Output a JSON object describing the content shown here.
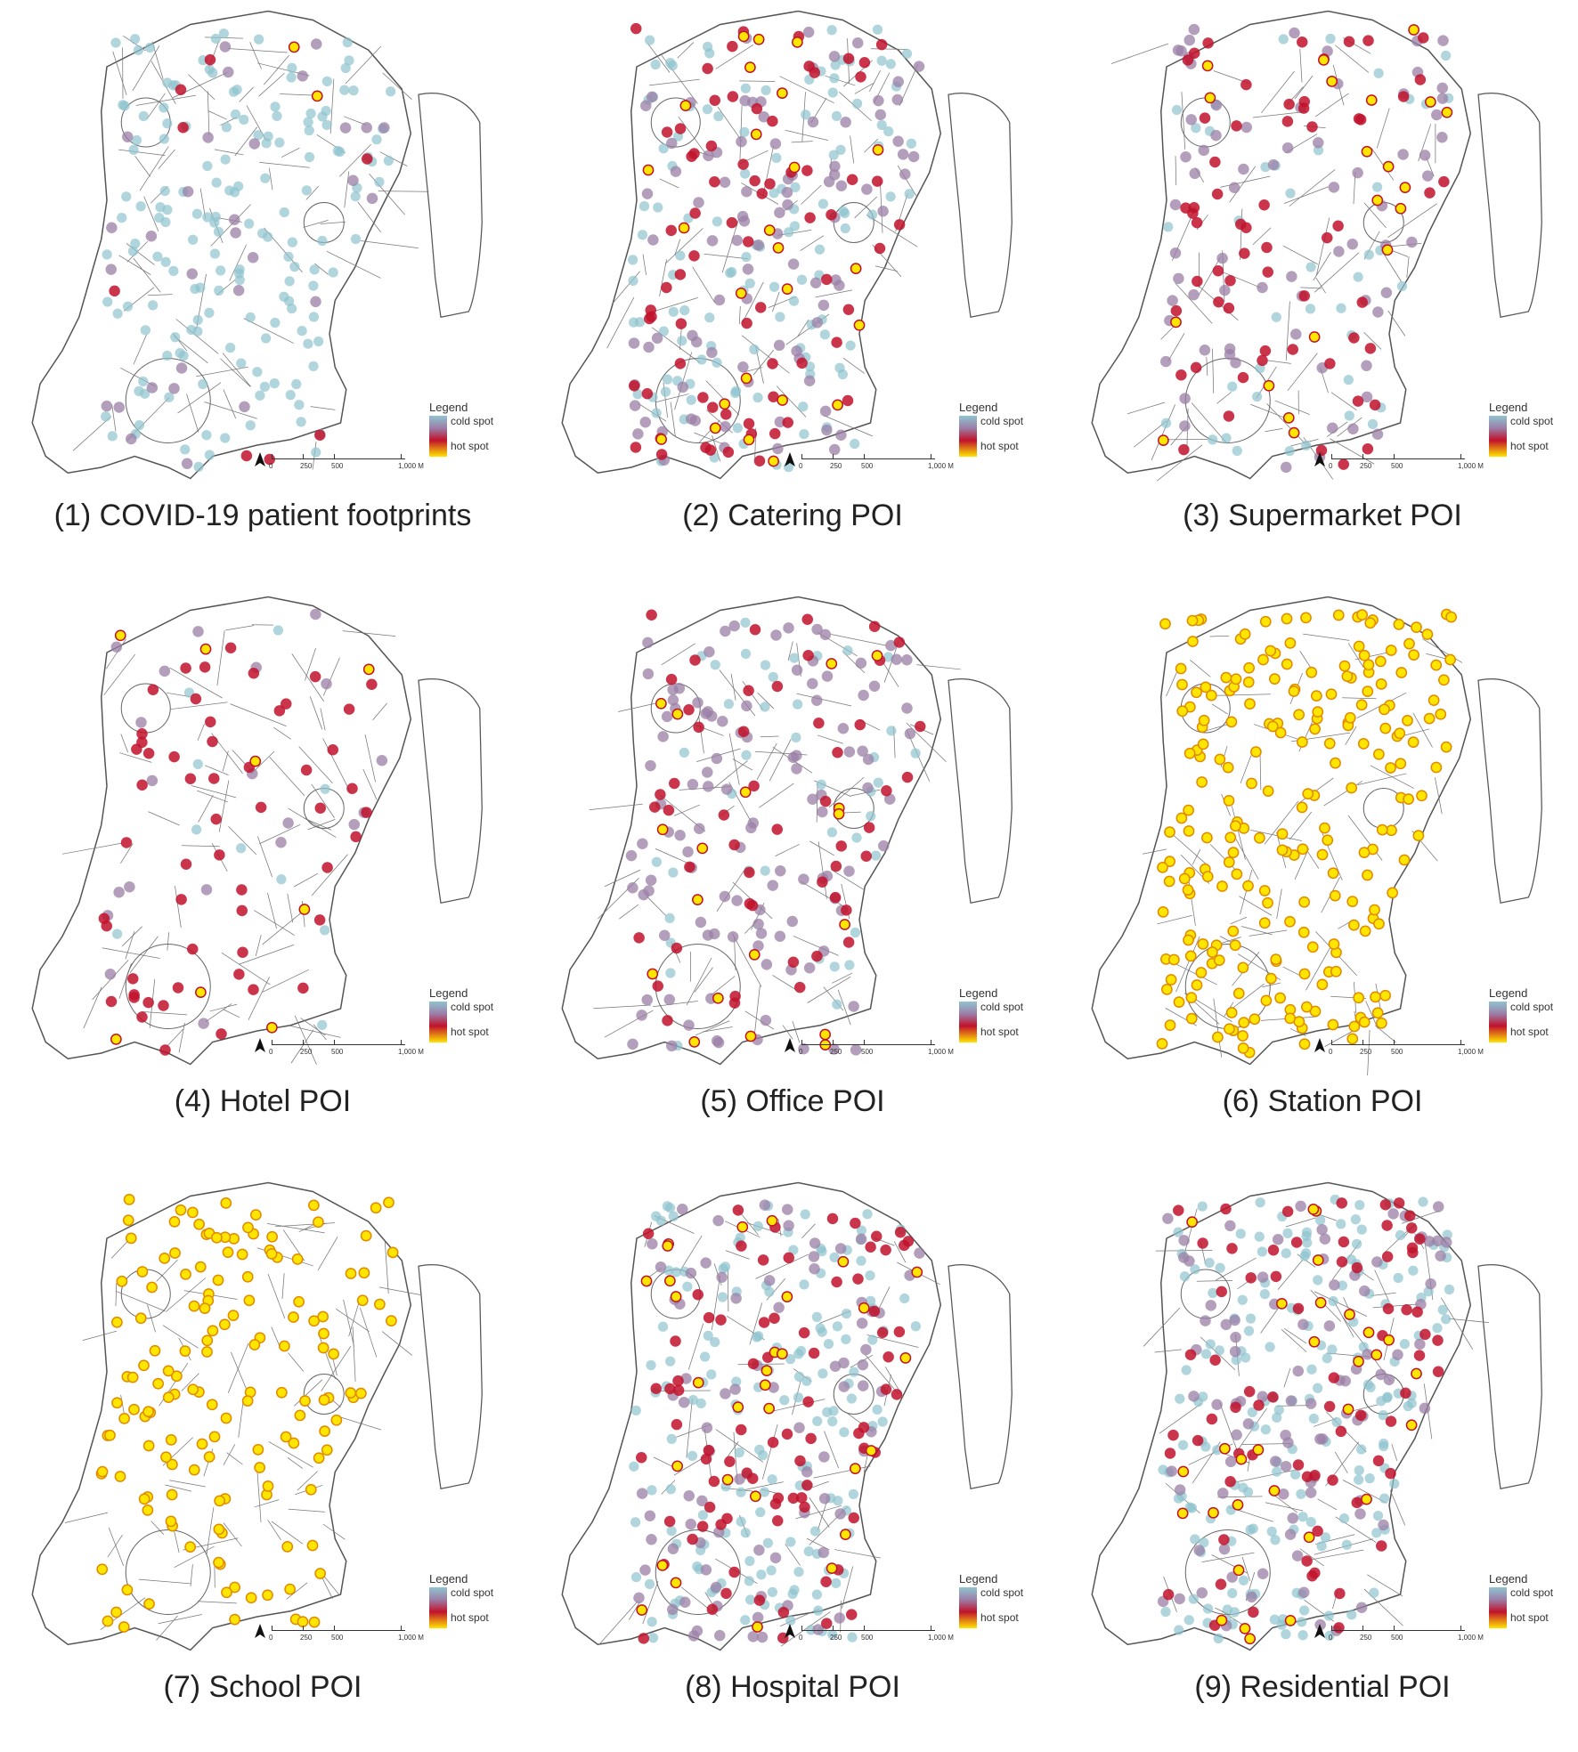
{
  "colors": {
    "cold": "#8ec3ce",
    "mid": "#9a7fa6",
    "warm": "#c1122b",
    "hot": "#ffe500",
    "road": "#555555"
  },
  "legend": {
    "title": "Legend",
    "cold": "cold spot",
    "hot": "hot spot"
  },
  "scale": {
    "ticks": [
      "0",
      "250",
      "500",
      "1,000 M"
    ]
  },
  "panels": [
    {
      "caption": "(1) COVID-19 patient footprints"
    },
    {
      "caption": "(2) Catering POI"
    },
    {
      "caption": "(3) Supermarket POI"
    },
    {
      "caption": "(4) Hotel POI"
    },
    {
      "caption": "(5) Office POI"
    },
    {
      "caption": "(6) Station POI"
    },
    {
      "caption": "(7) School POI"
    },
    {
      "caption": "(8) Hospital POI"
    },
    {
      "caption": "(9) Residential POI"
    }
  ]
}
